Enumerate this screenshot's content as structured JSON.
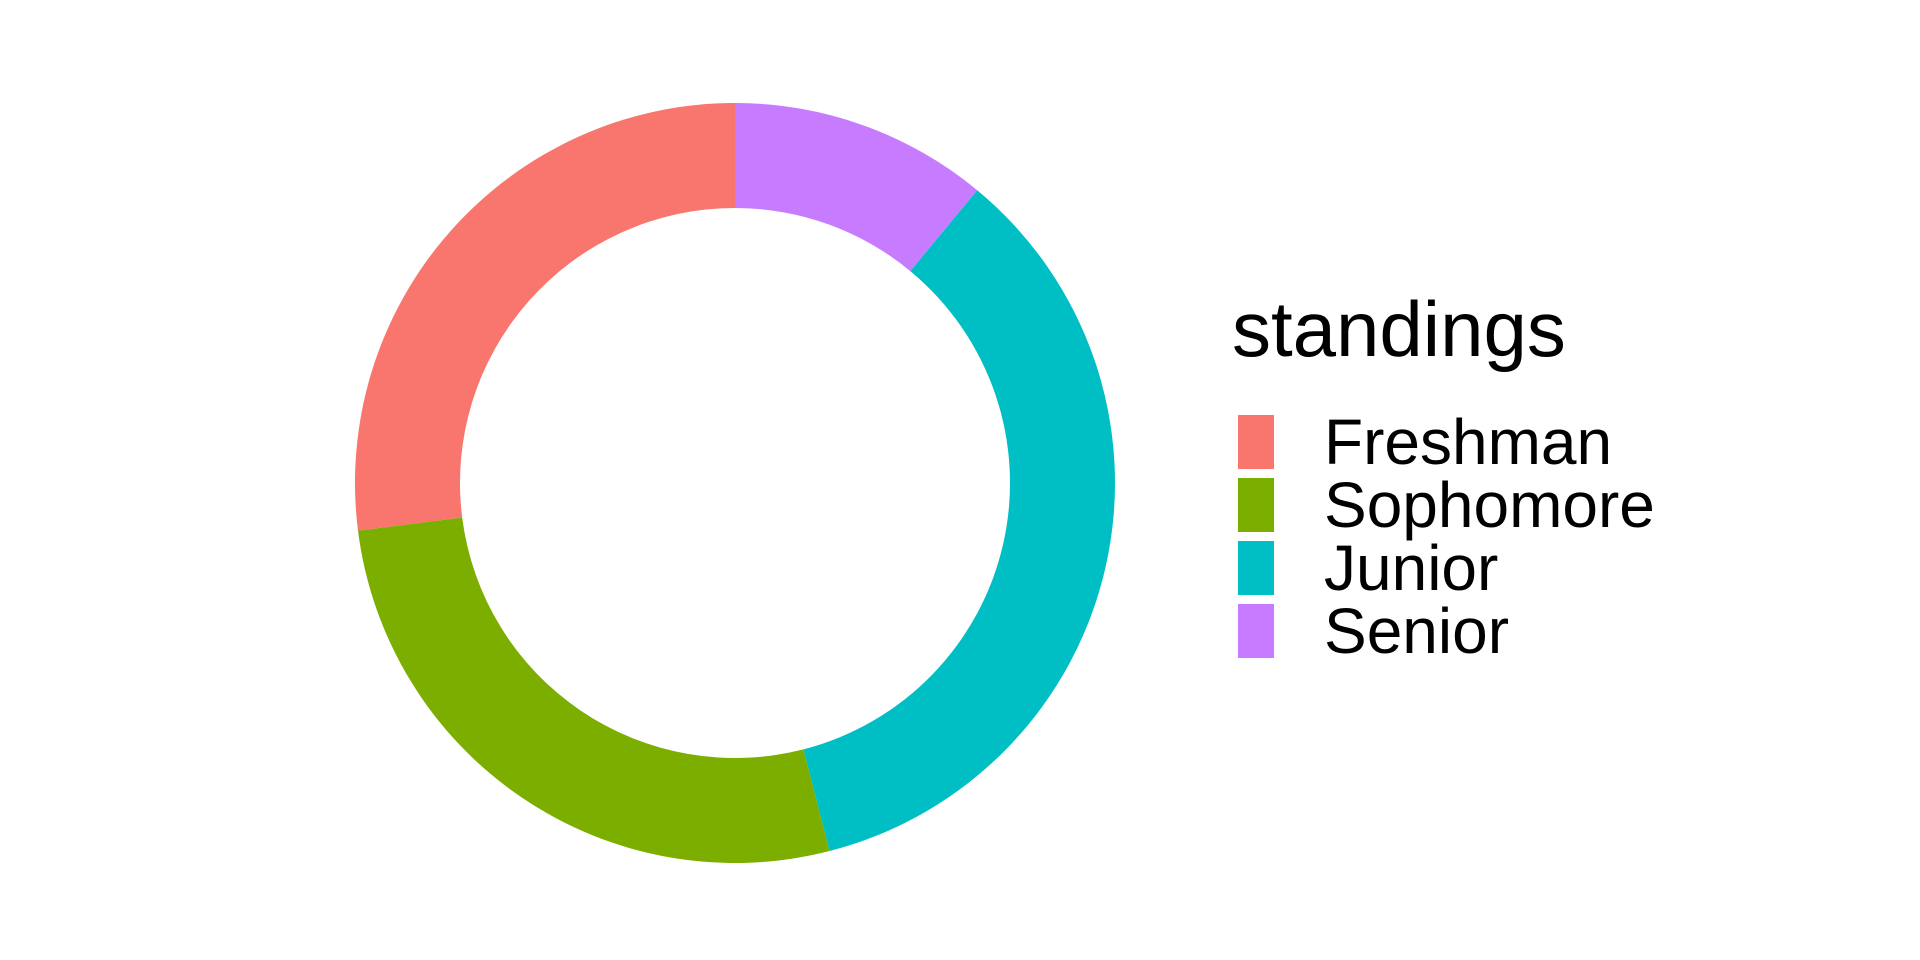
{
  "chart_data": {
    "type": "pie",
    "donut": true,
    "title": "",
    "legend_title": "standings",
    "legend_position": "right",
    "categories": [
      "Freshman",
      "Sophomore",
      "Junior",
      "Senior"
    ],
    "values": [
      27,
      27,
      35,
      11
    ],
    "colors": [
      "#F8766D",
      "#7CAE00",
      "#00BFC4",
      "#C77CFF"
    ],
    "slice_order": [
      "Senior",
      "Junior",
      "Sophomore",
      "Freshman"
    ],
    "start": "top",
    "direction": "clockwise"
  }
}
